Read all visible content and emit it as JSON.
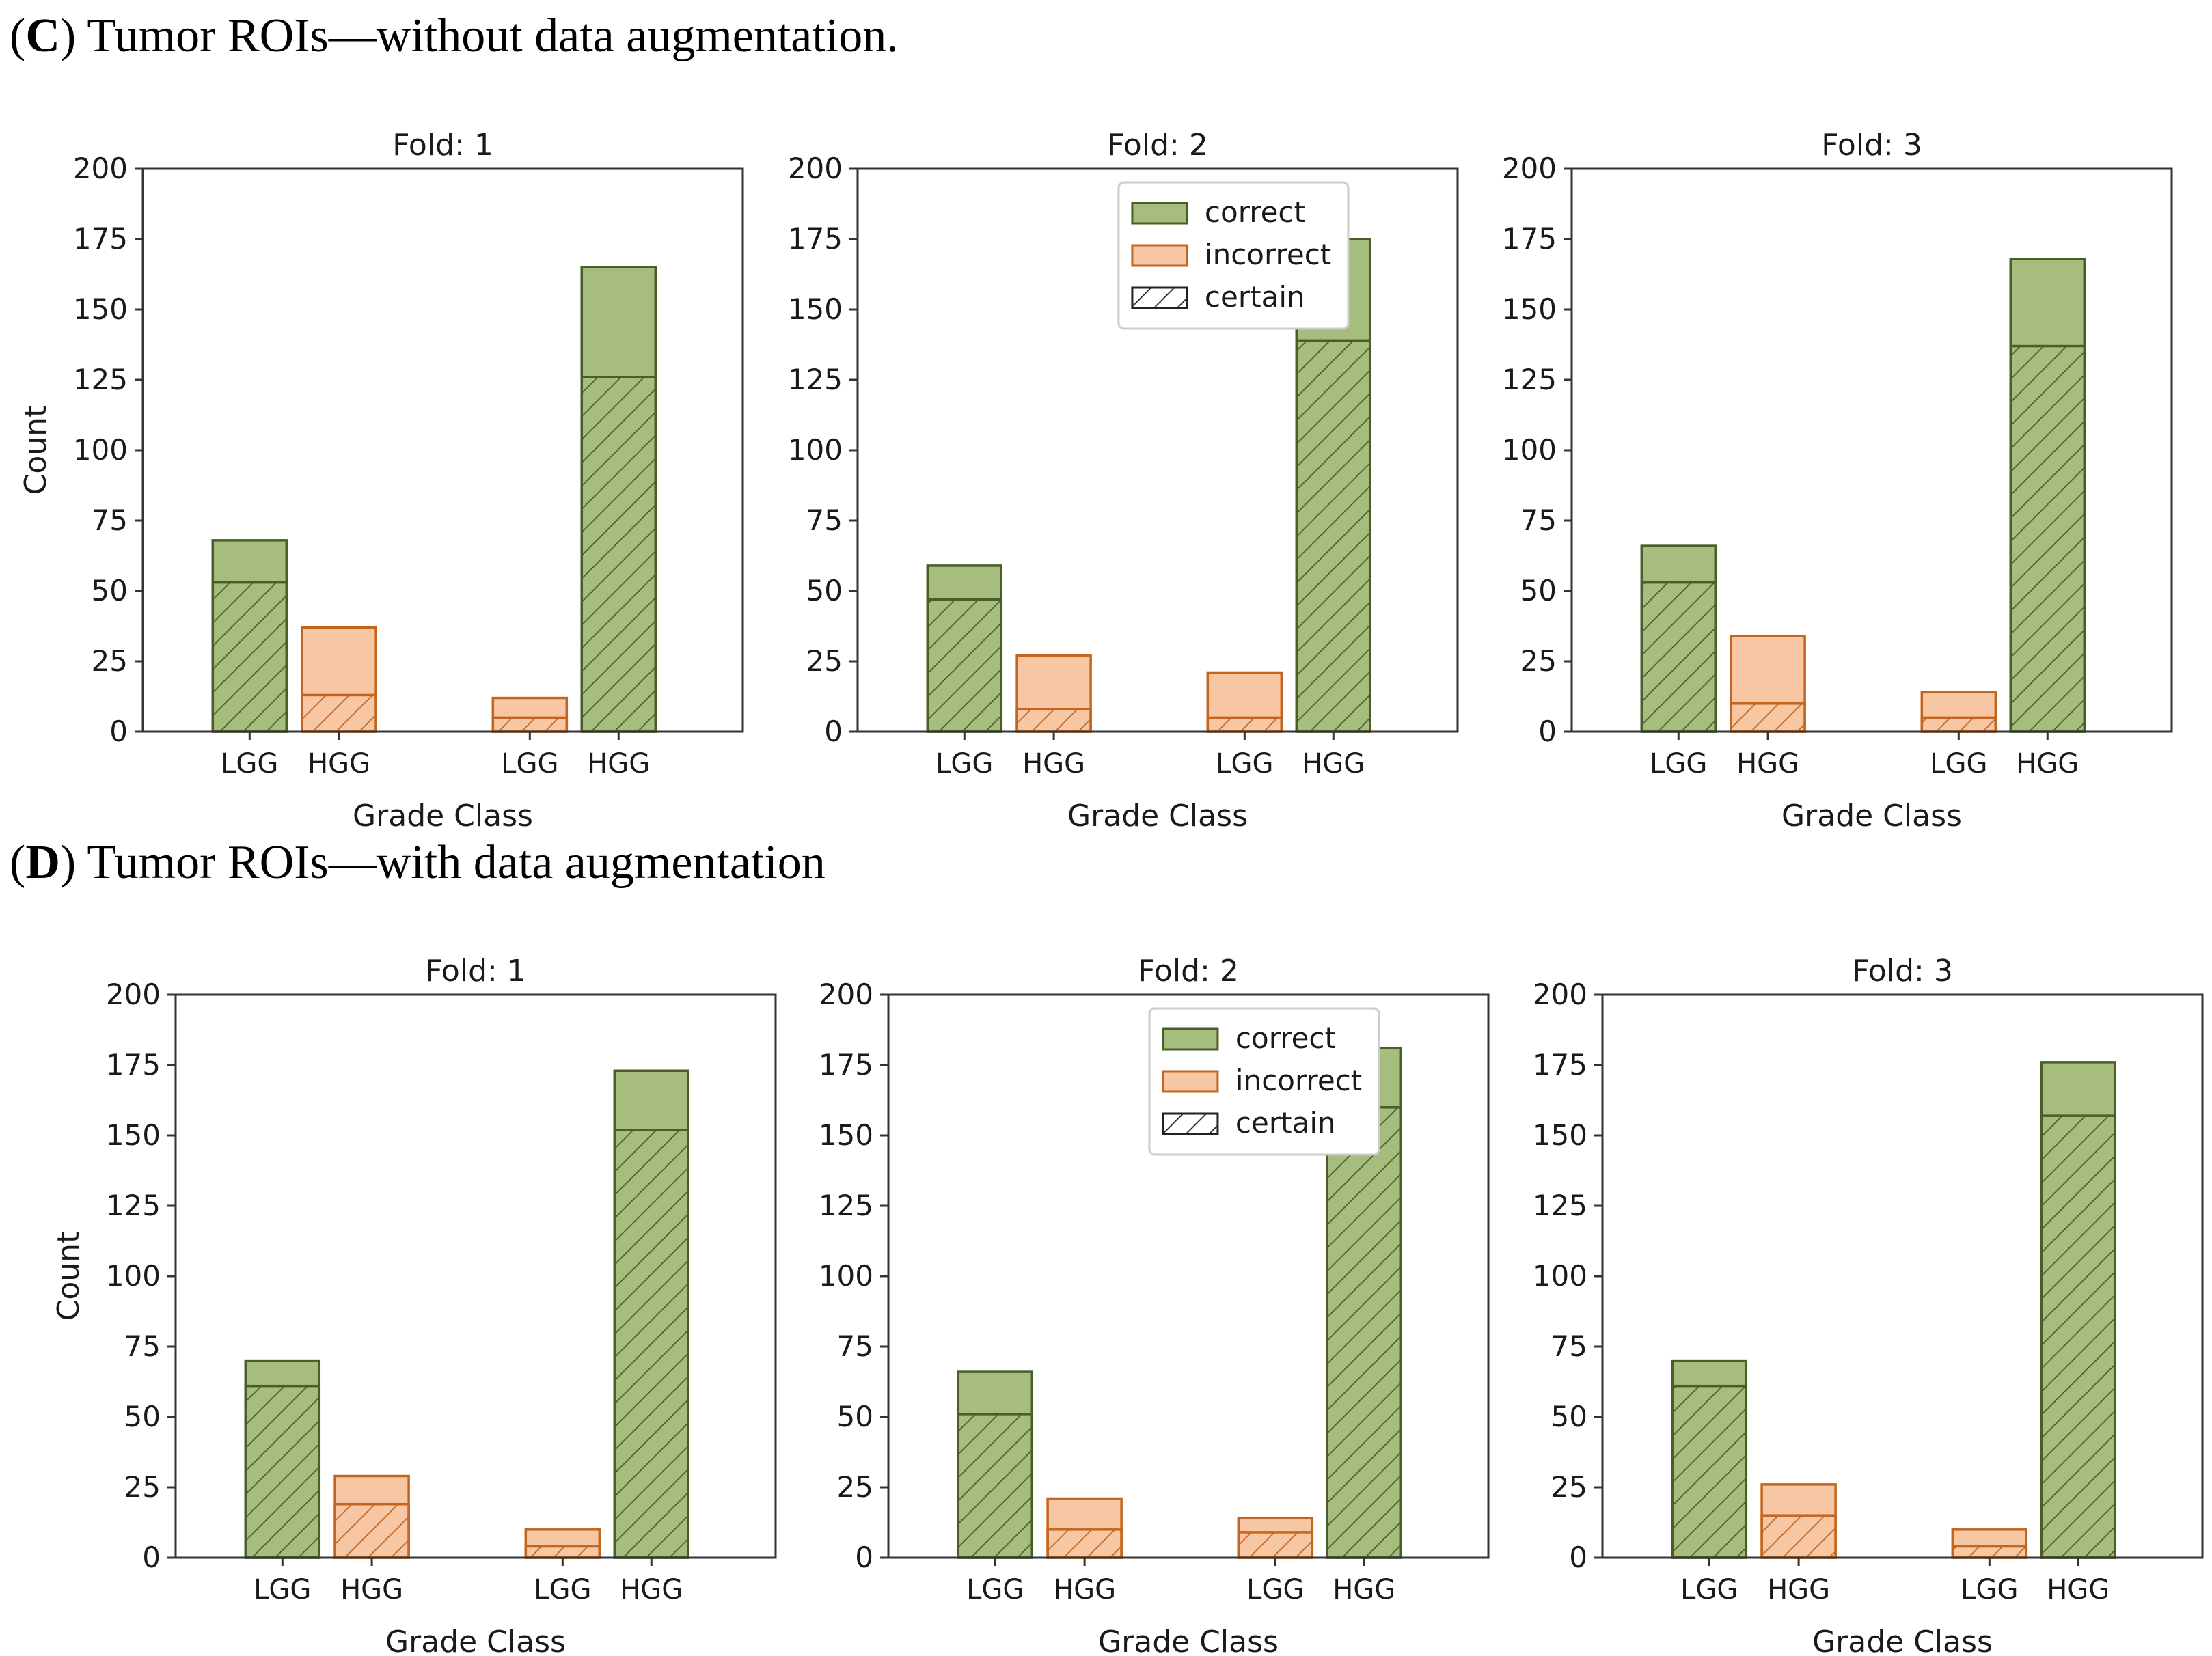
{
  "panels": [
    {
      "letter": "C",
      "title": "Tumor ROIs—without data augmentation.",
      "title_open": "(",
      "title_close": ") "
    },
    {
      "letter": "D",
      "title": "Tumor ROIs—with data augmentation",
      "title_open": "(",
      "title_close": ") "
    }
  ],
  "colors": {
    "correct_fill": "#a6bd7e",
    "correct_edge": "#4a5e2a",
    "incorrect_fill": "#f6c7a2",
    "incorrect_edge": "#c4651f",
    "axis": "#333333"
  },
  "legend": {
    "correct": "correct",
    "incorrect": "incorrect",
    "certain": "certain"
  },
  "chart_data": [
    {
      "type": "bar",
      "panel": "C",
      "title": "Fold: 1",
      "xlabel": "Grade Class",
      "ylabel": "Count",
      "ylim": [
        0,
        200
      ],
      "yticks": [
        0,
        25,
        50,
        75,
        100,
        125,
        150,
        175,
        200
      ],
      "categories": [
        "LGG",
        "HGG",
        "LGG",
        "HGG"
      ],
      "series": [
        {
          "name": "correct",
          "values": [
            68,
            null,
            null,
            165
          ]
        },
        {
          "name": "incorrect",
          "values": [
            null,
            37,
            12,
            null
          ]
        },
        {
          "name": "certain",
          "values": [
            53,
            13,
            5,
            126
          ]
        }
      ],
      "legend": false
    },
    {
      "type": "bar",
      "panel": "C",
      "title": "Fold: 2",
      "xlabel": "Grade Class",
      "ylabel": "",
      "ylim": [
        0,
        200
      ],
      "yticks": [
        0,
        25,
        50,
        75,
        100,
        125,
        150,
        175,
        200
      ],
      "categories": [
        "LGG",
        "HGG",
        "LGG",
        "HGG"
      ],
      "series": [
        {
          "name": "correct",
          "values": [
            59,
            null,
            null,
            175
          ]
        },
        {
          "name": "incorrect",
          "values": [
            null,
            27,
            21,
            null
          ]
        },
        {
          "name": "certain",
          "values": [
            47,
            8,
            5,
            139
          ]
        }
      ],
      "legend": true
    },
    {
      "type": "bar",
      "panel": "C",
      "title": "Fold: 3",
      "xlabel": "Grade Class",
      "ylabel": "",
      "ylim": [
        0,
        200
      ],
      "yticks": [
        0,
        25,
        50,
        75,
        100,
        125,
        150,
        175,
        200
      ],
      "categories": [
        "LGG",
        "HGG",
        "LGG",
        "HGG"
      ],
      "series": [
        {
          "name": "correct",
          "values": [
            66,
            null,
            null,
            168
          ]
        },
        {
          "name": "incorrect",
          "values": [
            null,
            34,
            14,
            null
          ]
        },
        {
          "name": "certain",
          "values": [
            53,
            10,
            5,
            137
          ]
        }
      ],
      "legend": false
    },
    {
      "type": "bar",
      "panel": "D",
      "title": "Fold: 1",
      "xlabel": "Grade Class",
      "ylabel": "Count",
      "ylim": [
        0,
        200
      ],
      "yticks": [
        0,
        25,
        50,
        75,
        100,
        125,
        150,
        175,
        200
      ],
      "categories": [
        "LGG",
        "HGG",
        "LGG",
        "HGG"
      ],
      "series": [
        {
          "name": "correct",
          "values": [
            70,
            null,
            null,
            173
          ]
        },
        {
          "name": "incorrect",
          "values": [
            null,
            29,
            10,
            null
          ]
        },
        {
          "name": "certain",
          "values": [
            61,
            19,
            4,
            152
          ]
        }
      ],
      "legend": false
    },
    {
      "type": "bar",
      "panel": "D",
      "title": "Fold: 2",
      "xlabel": "Grade Class",
      "ylabel": "",
      "ylim": [
        0,
        200
      ],
      "yticks": [
        0,
        25,
        50,
        75,
        100,
        125,
        150,
        175,
        200
      ],
      "categories": [
        "LGG",
        "HGG",
        "LGG",
        "HGG"
      ],
      "series": [
        {
          "name": "correct",
          "values": [
            66,
            null,
            null,
            181
          ]
        },
        {
          "name": "incorrect",
          "values": [
            null,
            21,
            14,
            null
          ]
        },
        {
          "name": "certain",
          "values": [
            51,
            10,
            9,
            160
          ]
        }
      ],
      "legend": true
    },
    {
      "type": "bar",
      "panel": "D",
      "title": "Fold: 3",
      "xlabel": "Grade Class",
      "ylabel": "",
      "ylim": [
        0,
        200
      ],
      "yticks": [
        0,
        25,
        50,
        75,
        100,
        125,
        150,
        175,
        200
      ],
      "categories": [
        "LGG",
        "HGG",
        "LGG",
        "HGG"
      ],
      "series": [
        {
          "name": "correct",
          "values": [
            70,
            null,
            null,
            176
          ]
        },
        {
          "name": "incorrect",
          "values": [
            null,
            26,
            10,
            null
          ]
        },
        {
          "name": "certain",
          "values": [
            61,
            15,
            4,
            157
          ]
        }
      ],
      "legend": false
    }
  ]
}
